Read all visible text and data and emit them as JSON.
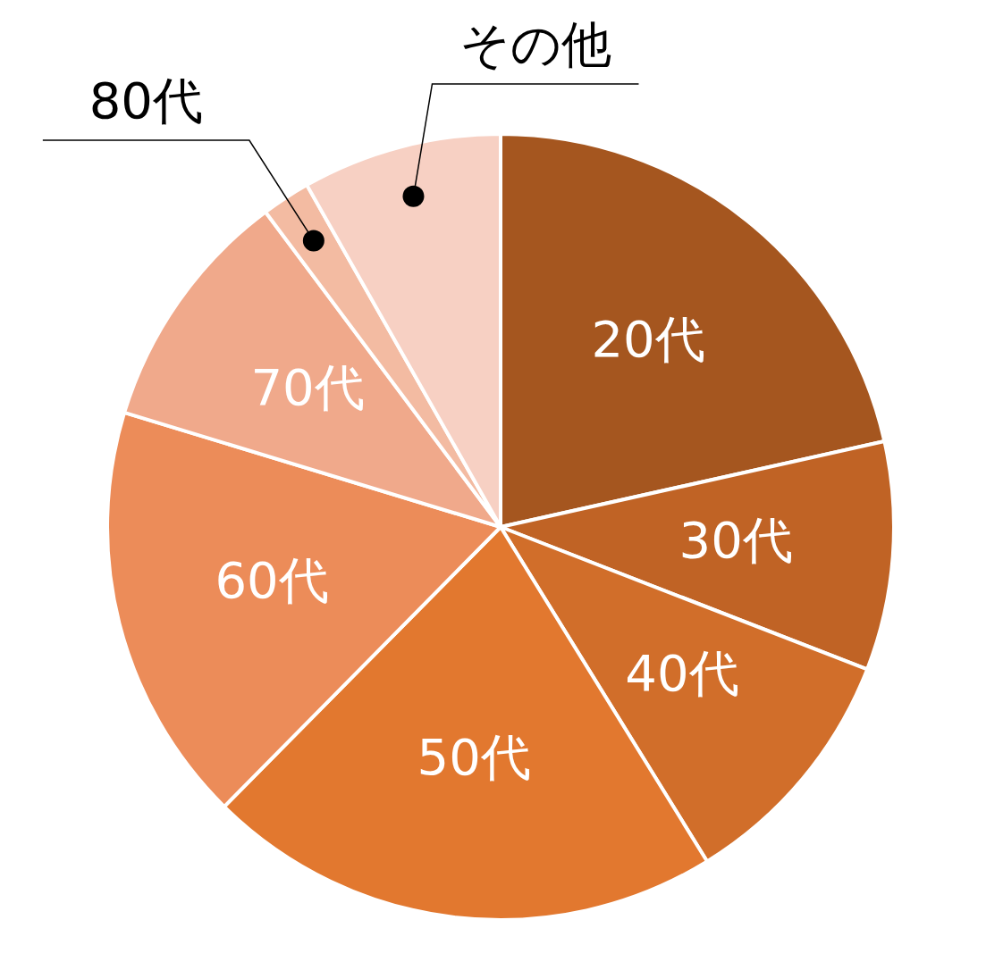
{
  "chart_data": {
    "type": "pie",
    "categories": [
      "20代",
      "30代",
      "40代",
      "50代",
      "60代",
      "70代",
      "80代",
      "その他"
    ],
    "values": [
      21.5,
      9.4,
      10.3,
      21.2,
      17.3,
      10.1,
      2.0,
      8.2
    ],
    "colors": [
      "#a5561f",
      "#c06325",
      "#d16e2a",
      "#e2782f",
      "#ec8c59",
      "#f0a98b",
      "#f3bba2",
      "#f7d0c3"
    ],
    "legend": false
  }
}
